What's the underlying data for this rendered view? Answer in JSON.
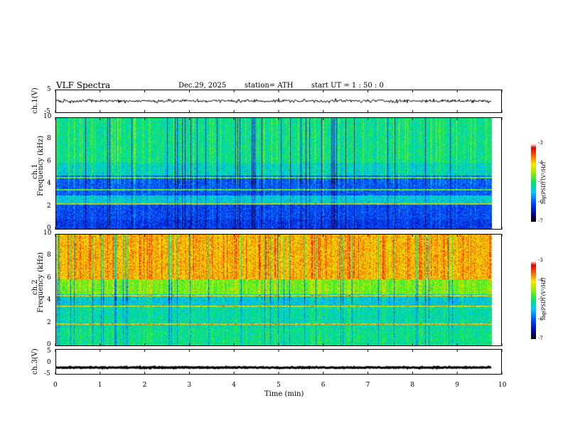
{
  "header": {
    "title": "VLF  Spectra",
    "date": "Dec.29, 2025",
    "station": "station= ATH",
    "start_ut": "start  UT  =   1  : 50 : 0"
  },
  "chart_data": [
    {
      "type": "line",
      "name": "ch1-waveform",
      "ylabel": "ch.1(V)",
      "ylim": [
        -5,
        5
      ],
      "yticks": [
        "5",
        "-5"
      ],
      "xlim": [
        0,
        10
      ],
      "x_range_data": [
        0,
        9.8
      ],
      "baseline": 0,
      "noise_amplitude": 0.5
    },
    {
      "type": "heatmap",
      "name": "ch1-spectrogram",
      "ylabel_top": "ch.1",
      "ylabel": "Frequency  (kHz)",
      "ylim": [
        0,
        10
      ],
      "yticks": [
        "0",
        "2",
        "4",
        "6",
        "8",
        "10"
      ],
      "xlim": [
        0,
        10
      ],
      "x_range_data": [
        0,
        9.8
      ],
      "colorbar": {
        "label": "log(PSD) (V²/Hz)",
        "range": [
          -7,
          -3
        ],
        "ticks": [
          "-3",
          "-4",
          "-5",
          "-6",
          "-7"
        ]
      },
      "bands": [
        {
          "f": [
            0.0,
            0.8
          ],
          "level": -6.2
        },
        {
          "f": [
            0.8,
            2.2
          ],
          "level": -6.1
        },
        {
          "f": [
            2.2,
            3.0
          ],
          "level": -5.4
        },
        {
          "f": [
            3.0,
            4.8
          ],
          "level": -6.0
        },
        {
          "f": [
            4.8,
            6.0
          ],
          "level": -5.3
        },
        {
          "f": [
            6.0,
            10.0
          ],
          "level": -5.1
        }
      ],
      "lines_khz": [
        2.2,
        3.5,
        4.6
      ]
    },
    {
      "type": "heatmap",
      "name": "ch2-spectrogram",
      "ylabel_top": "ch.2",
      "ylabel": "Frequency  (kHz)",
      "ylim": [
        0,
        10
      ],
      "yticks": [
        "0",
        "2",
        "4",
        "6",
        "8",
        "10"
      ],
      "xlim": [
        0,
        10
      ],
      "x_range_data": [
        0,
        9.8
      ],
      "colorbar": {
        "label": "log(PSD) (V²/Hz)",
        "range": [
          -7,
          -3
        ],
        "ticks": [
          "-3",
          "-4",
          "-5",
          "-6",
          "-7"
        ]
      },
      "bands": [
        {
          "f": [
            0.0,
            1.5
          ],
          "level": -5.1
        },
        {
          "f": [
            1.5,
            3.5
          ],
          "level": -5.2
        },
        {
          "f": [
            3.5,
            4.6
          ],
          "level": -5.4
        },
        {
          "f": [
            4.6,
            6.0
          ],
          "level": -4.6
        },
        {
          "f": [
            6.0,
            10.0
          ],
          "level": -3.9
        }
      ],
      "lines_khz": [
        1.9,
        3.5,
        4.5
      ]
    },
    {
      "type": "line",
      "name": "ch3-waveform",
      "ylabel": "ch.3(V)",
      "ylim": [
        -5,
        5
      ],
      "yticks": [
        "5",
        "0",
        "-5"
      ],
      "xlim": [
        0,
        10
      ],
      "x_range_data": [
        0,
        9.8
      ],
      "baseline": -2.6,
      "noise_amplitude": 0.15
    }
  ],
  "xaxis": {
    "label": "Time  (min)",
    "ticks": [
      "0",
      "1",
      "2",
      "3",
      "4",
      "5",
      "6",
      "7",
      "8",
      "9",
      "10"
    ]
  }
}
